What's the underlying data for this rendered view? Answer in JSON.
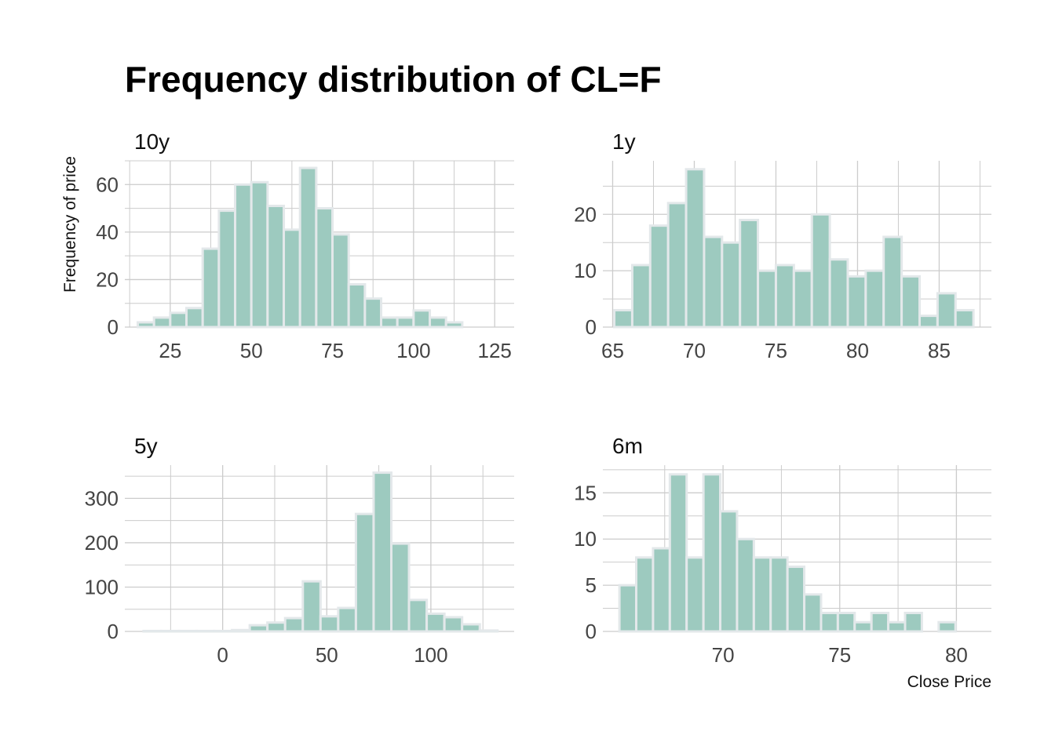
{
  "title": "Frequency distribution of CL=F",
  "colors": {
    "bar_fill": "#9dcabf",
    "bar_stroke": "#e3e8ea",
    "grid": "#cccccc",
    "background": "#ffffff"
  },
  "chart_data": {
    "type": "bar",
    "title": "Frequency distribution of CL=F",
    "ylabel": "Frequency of price",
    "xlabel": "Close Price",
    "grid": true,
    "panels": [
      {
        "label": "10y",
        "bin_width": 5,
        "xlim": [
          11,
          131
        ],
        "ylim": [
          0,
          70
        ],
        "x_ticks": [
          25,
          50,
          75,
          100,
          125
        ],
        "y_ticks": [
          0,
          20,
          40,
          60
        ],
        "bin_starts": [
          15,
          20,
          25,
          30,
          35,
          40,
          45,
          50,
          55,
          60,
          65,
          70,
          75,
          80,
          85,
          90,
          95,
          100,
          105,
          110,
          115,
          120
        ],
        "values": [
          2,
          4,
          6,
          8,
          33,
          49,
          60,
          61,
          51,
          41,
          67,
          50,
          39,
          18,
          12,
          4,
          4,
          7,
          4,
          2,
          0,
          0
        ]
      },
      {
        "label": "1y",
        "bin_width": 1.1,
        "xlim": [
          64.4,
          88.2
        ],
        "ylim": [
          0,
          29.5
        ],
        "x_ticks": [
          65,
          70,
          75,
          80,
          85
        ],
        "y_ticks": [
          0,
          10,
          20
        ],
        "bin_starts": [
          65.1,
          66.2,
          67.3,
          68.4,
          69.5,
          70.6,
          71.7,
          72.8,
          73.9,
          75.0,
          76.1,
          77.2,
          78.3,
          79.4,
          80.5,
          81.6,
          82.7,
          83.8,
          84.9,
          86.0
        ],
        "values": [
          3,
          11,
          18,
          22,
          28,
          16,
          15,
          19,
          10,
          11,
          10,
          20,
          12,
          9,
          10,
          16,
          9,
          2,
          6,
          3
        ]
      },
      {
        "label": "5y",
        "bin_width": 8.5,
        "xlim": [
          -47,
          140
        ],
        "ylim": [
          0,
          375
        ],
        "x_ticks": [
          0,
          50,
          100
        ],
        "y_ticks": [
          0,
          100,
          200,
          300
        ],
        "bin_starts": [
          -38,
          -29.5,
          -21,
          -12.5,
          -4,
          4.5,
          13,
          21.5,
          30,
          38.5,
          47,
          55.5,
          64,
          72.5,
          81,
          89.5,
          98,
          106.5,
          115,
          123.5
        ],
        "values": [
          1,
          1,
          1,
          1,
          1,
          3,
          14,
          20,
          30,
          113,
          34,
          53,
          265,
          358,
          198,
          71,
          40,
          32,
          16,
          2
        ]
      },
      {
        "label": "6m",
        "bin_width": 0.72,
        "xlim": [
          64.85,
          81.5
        ],
        "ylim": [
          0,
          18
        ],
        "x_ticks": [
          70,
          75,
          80
        ],
        "y_ticks": [
          0,
          5,
          10,
          15
        ],
        "bin_starts": [
          65.56,
          66.28,
          67.0,
          67.72,
          68.44,
          69.16,
          69.88,
          70.6,
          71.32,
          72.04,
          72.76,
          73.48,
          74.2,
          74.92,
          75.64,
          76.36,
          77.08,
          77.8,
          78.52,
          79.24,
          79.96
        ],
        "values": [
          5,
          8,
          9,
          17,
          8,
          17,
          13,
          10,
          8,
          8,
          7,
          4,
          2,
          2,
          1,
          2,
          1,
          2,
          0,
          1,
          0
        ]
      }
    ]
  }
}
